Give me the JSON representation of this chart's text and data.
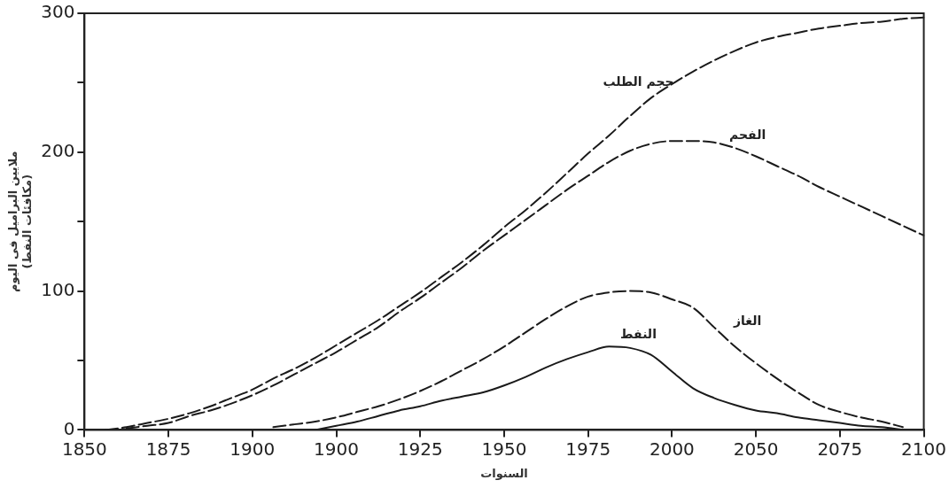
{
  "chart_data": {
    "type": "line",
    "xlabel": "السنوات",
    "ylabel": "ملايين البراميل فى اليوم\n(مكافئات النفط)",
    "categories": [
      "1850",
      null,
      null,
      null,
      "1875",
      null,
      null,
      null,
      "1900",
      null,
      null,
      null,
      "1900",
      null,
      null,
      null,
      "1925",
      null,
      null,
      null,
      "1950",
      null,
      null,
      null,
      "1975",
      null,
      null,
      null,
      "2000",
      null,
      null,
      null,
      "2050",
      null,
      null,
      null,
      "2075",
      null,
      null,
      null,
      "2100"
    ],
    "ylim": [
      0,
      300
    ],
    "yticks": [
      0,
      {
        "value": 50,
        "label": null
      },
      100,
      {
        "value": 150,
        "label": null
      },
      200,
      {
        "value": 250,
        "label": null
      },
      300
    ],
    "grid": false,
    "legend": false,
    "marker": "none",
    "series": [
      {
        "name": "حجم الطلب",
        "color": "#1a1a1a",
        "line_style": "dashed",
        "values": [
          null,
          0,
          2,
          5,
          8,
          12,
          17,
          23,
          29,
          37,
          44,
          52,
          61,
          70,
          79,
          89,
          99,
          110,
          121,
          133,
          146,
          158,
          171,
          185,
          199,
          212,
          226,
          239,
          249,
          258,
          266,
          273,
          279,
          283,
          286,
          289,
          291,
          293,
          294,
          296,
          297
        ]
      },
      {
        "name": "الفحم",
        "color": "#1a1a1a",
        "line_style": "dashed",
        "values": [
          null,
          null,
          1,
          3,
          5,
          10,
          14,
          19,
          25,
          32,
          40,
          48,
          56,
          65,
          74,
          85,
          95,
          106,
          117,
          129,
          140,
          151,
          162,
          173,
          183,
          193,
          201,
          206,
          208,
          208,
          207,
          203,
          197,
          190,
          183,
          175,
          168,
          161,
          154,
          147,
          140
        ]
      },
      {
        "name": "الغاز",
        "color": "#1a1a1a",
        "line_style": "dashed",
        "values": [
          null,
          null,
          null,
          null,
          null,
          null,
          null,
          null,
          null,
          2,
          4,
          6,
          9,
          13,
          17,
          22,
          28,
          35,
          43,
          51,
          60,
          70,
          80,
          89,
          96,
          99,
          100,
          99,
          94,
          88,
          74,
          60,
          48,
          37,
          27,
          18,
          13,
          9,
          6,
          2,
          null
        ]
      },
      {
        "name": "النفط",
        "color": "#1a1a1a",
        "line_style": "solid",
        "values": [
          null,
          null,
          null,
          null,
          null,
          null,
          null,
          null,
          null,
          null,
          null,
          0,
          3,
          6,
          10,
          14,
          17,
          21,
          24,
          27,
          32,
          38,
          45,
          51,
          56,
          60,
          59,
          54,
          42,
          30,
          23,
          18,
          14,
          12,
          9,
          7,
          5,
          3,
          2,
          0,
          null
        ]
      }
    ]
  }
}
